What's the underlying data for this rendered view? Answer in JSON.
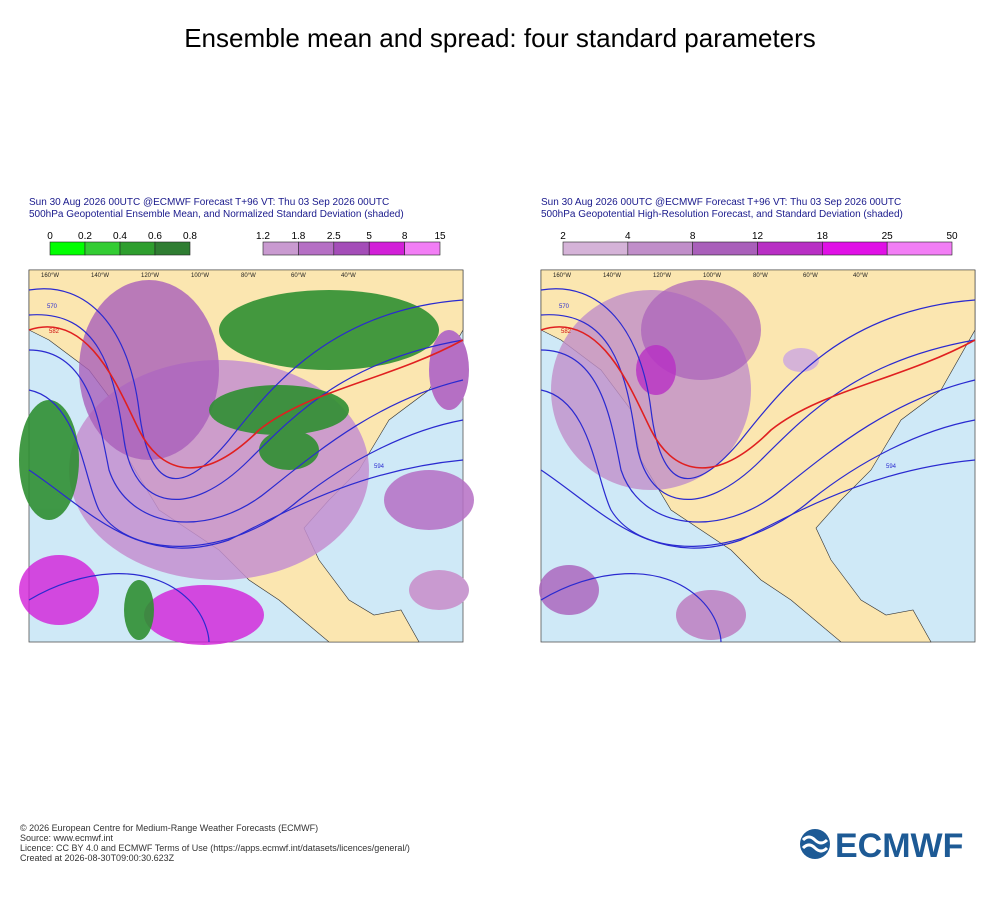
{
  "title": "Ensemble mean and spread: four standard parameters",
  "panels": [
    {
      "header": [
        "Sun 30 Aug 2026 00UTC @ECMWF Forecast T+96 VT: Thu 03 Sep 2026 00UTC",
        "500hPa Geopotential Ensemble Mean, and Normalized Standard Deviation (shaded)"
      ],
      "legends": [
        {
          "colors": [
            "#00ff00",
            "#33cc33",
            "#2e9e2e",
            "#2f7d32"
          ],
          "ticks": [
            "0",
            "0.2",
            "0.4",
            "0.6",
            "0.8"
          ]
        },
        {
          "colors": [
            "#c99ad0",
            "#b56fc4",
            "#a44db8",
            "#d21fd8",
            "#f27ef5"
          ],
          "ticks": [
            "1.2",
            "1.8",
            "2.5",
            "5",
            "8",
            "15"
          ]
        }
      ],
      "map_labels": [
        "160°W",
        "140°W",
        "120°W",
        "100°W",
        "80°W",
        "60°W",
        "40°W",
        "570",
        "582",
        "594"
      ]
    },
    {
      "header": [
        "Sun 30 Aug 2026 00UTC @ECMWF Forecast T+96 VT: Thu 03 Sep 2026 00UTC",
        "500hPa Geopotential High-Resolution Forecast, and Standard Deviation (shaded)"
      ],
      "legends": [
        {
          "colors": [
            "#d5b3d8",
            "#c08ec9",
            "#a95fba",
            "#b82fc4",
            "#e010e6",
            "#f27ef5"
          ],
          "ticks": [
            "2",
            "4",
            "8",
            "12",
            "18",
            "25",
            "50"
          ]
        }
      ],
      "map_labels": [
        "160°W",
        "140°W",
        "120°W",
        "100°W",
        "80°W",
        "60°W",
        "40°W",
        "570",
        "582",
        "594"
      ]
    }
  ],
  "footer": [
    "© 2026 European Centre for Medium-Range Weather Forecasts (ECMWF)",
    "Source: www.ecmwf.int",
    "Licence: CC BY 4.0 and ECMWF Terms of Use (https://apps.ecmwf.int/datasets/licences/general/)",
    "Created at 2026-08-30T09:00:30.623Z"
  ],
  "logo": "ECMWF"
}
